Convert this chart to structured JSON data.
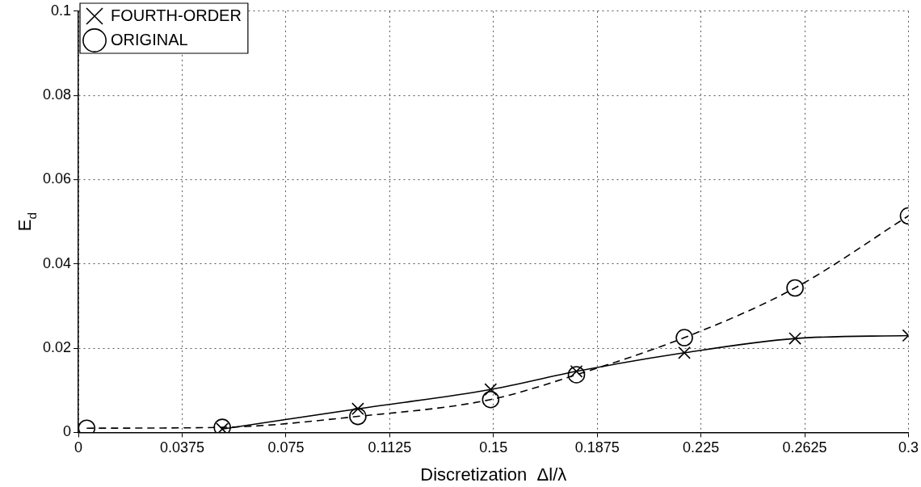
{
  "chart_data": {
    "type": "line",
    "xlabel": "Discretization  Δl/λ",
    "ylabel": "E$_{d}$",
    "xlim": [
      0,
      0.3
    ],
    "xticks": [
      0,
      0.0375,
      0.075,
      0.1125,
      0.15,
      0.1875,
      0.225,
      0.2625,
      0.3
    ],
    "ylim": [
      0,
      0.1
    ],
    "yticks": [
      0,
      0.02,
      0.04,
      0.06,
      0.08,
      0.1
    ],
    "grid": true,
    "legend": "top left",
    "series": [
      {
        "name": "FOURTH-ORDER",
        "color": "#000000",
        "marker": "cross",
        "line_style": "solid",
        "x": [
          0.052,
          0.101,
          0.149,
          0.18,
          0.219,
          0.259,
          0.3
        ],
        "values": [
          0.0008,
          0.0056,
          0.0102,
          0.0145,
          0.0189,
          0.0223,
          0.023
        ]
      },
      {
        "name": "ORIGINAL",
        "color": "#000000",
        "marker": "circle",
        "line_style": "dashed",
        "x": [
          0.003,
          0.052,
          0.101,
          0.149,
          0.18,
          0.219,
          0.259,
          0.3
        ],
        "values": [
          0.001,
          0.0012,
          0.0038,
          0.0078,
          0.0137,
          0.0225,
          0.0343,
          0.0514
        ]
      }
    ]
  }
}
